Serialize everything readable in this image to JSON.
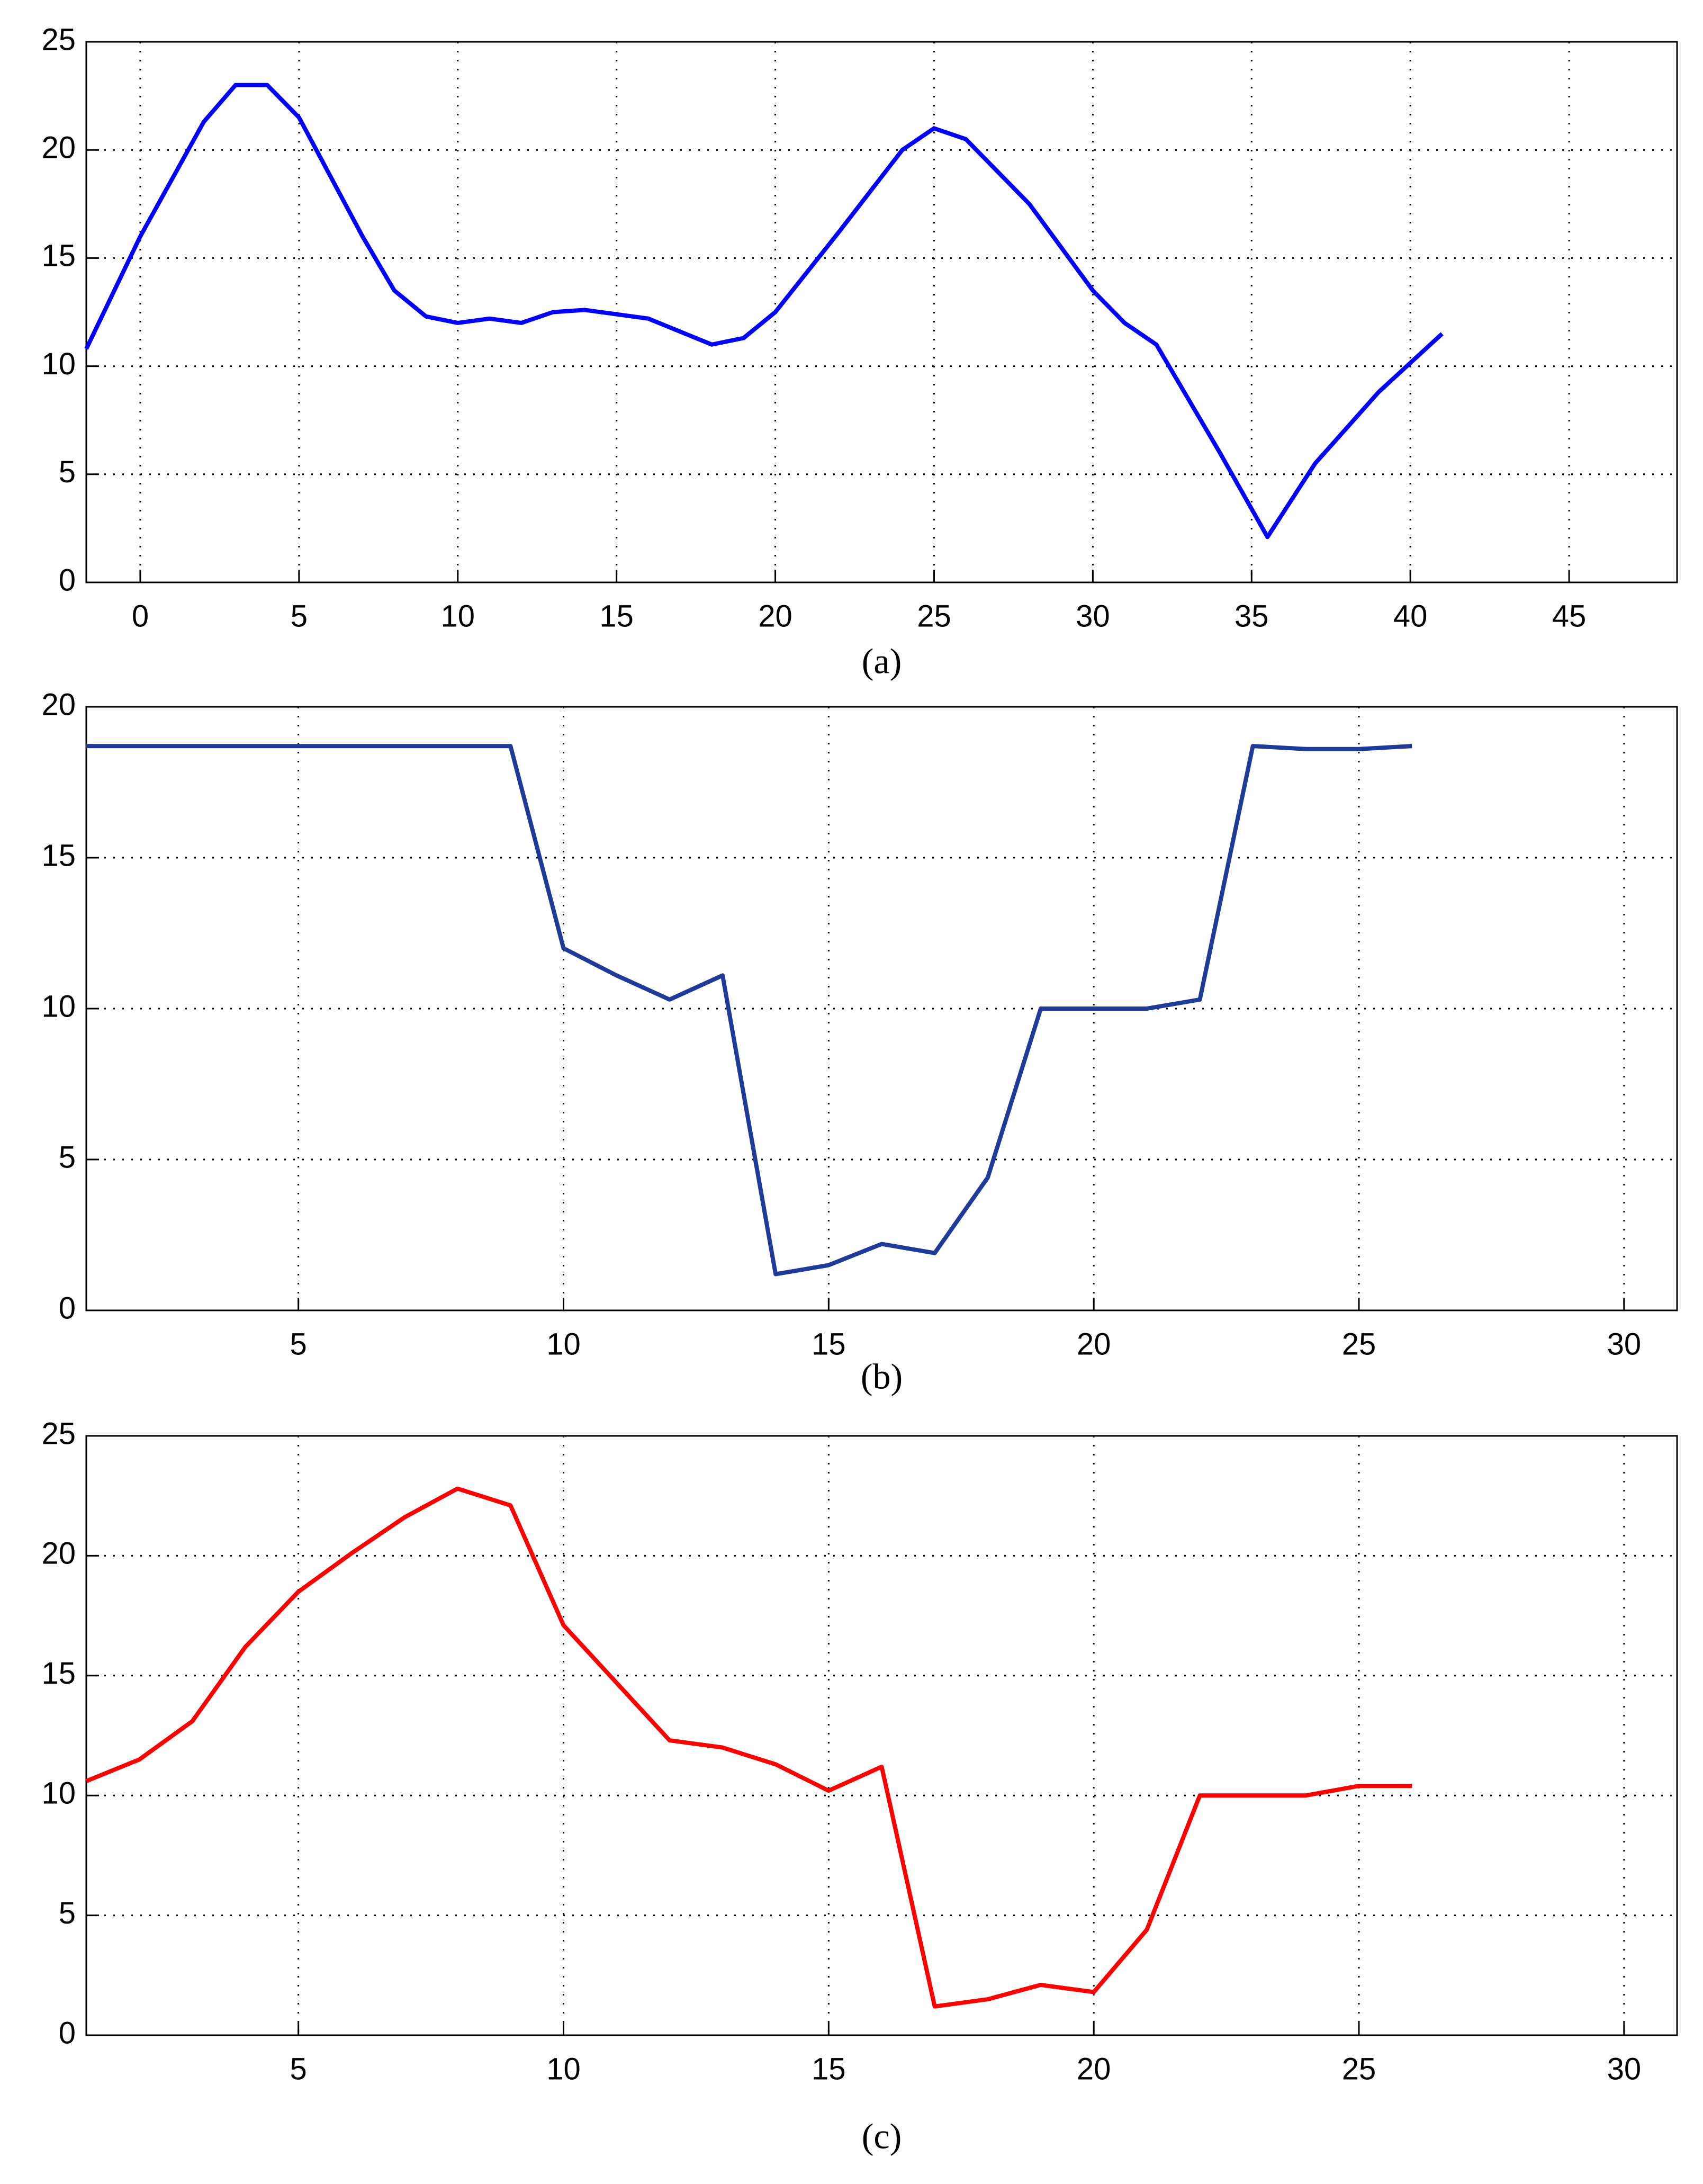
{
  "chart_data": [
    {
      "type": "line",
      "caption": "(a)",
      "xlim": [
        -1.7,
        48.4
      ],
      "ylim": [
        0,
        25
      ],
      "xticks": [
        0,
        5,
        10,
        15,
        20,
        25,
        30,
        35,
        40,
        45
      ],
      "yticks": [
        0,
        5,
        10,
        15,
        20,
        25
      ],
      "grid": true,
      "x": [
        -1.7,
        0,
        2,
        3,
        4,
        5,
        7,
        8,
        9,
        10,
        11,
        12,
        13,
        14,
        16,
        18,
        19,
        20,
        22,
        24,
        25,
        26,
        28,
        30,
        31,
        32,
        34,
        35.5,
        37,
        39,
        41
      ],
      "series": [
        {
          "color": "#0000ff",
          "values": [
            10.8,
            16,
            21.3,
            23,
            23,
            21.5,
            16,
            13.5,
            12.3,
            12,
            12.2,
            12,
            12.5,
            12.6,
            12.2,
            11,
            11.3,
            12.5,
            16.2,
            20,
            21,
            20.5,
            17.5,
            13.5,
            12,
            11,
            6,
            2.1,
            5.5,
            8.8,
            11.5
          ]
        }
      ]
    },
    {
      "type": "line",
      "caption": "(b)",
      "xlim": [
        1,
        31
      ],
      "ylim": [
        0,
        20
      ],
      "xticks": [
        5,
        10,
        15,
        20,
        25,
        30
      ],
      "yticks": [
        0,
        5,
        10,
        15,
        20
      ],
      "grid": true,
      "x": [
        1,
        2,
        3,
        4,
        5,
        6,
        7,
        8,
        9,
        10,
        11,
        12,
        13,
        14,
        15,
        16,
        17,
        18,
        19,
        20,
        21,
        22,
        23,
        24,
        25,
        26
      ],
      "series": [
        {
          "color": "#1f3b9a",
          "values": [
            18.7,
            18.7,
            18.7,
            18.7,
            18.7,
            18.7,
            18.7,
            18.7,
            18.7,
            12,
            11.1,
            10.3,
            11.1,
            1.2,
            1.5,
            2.2,
            1.9,
            4.4,
            10,
            10,
            10,
            10.3,
            18.7,
            18.6,
            18.6,
            18.7
          ]
        }
      ]
    },
    {
      "type": "line",
      "caption": "(c)",
      "xlim": [
        1,
        31
      ],
      "ylim": [
        0,
        25
      ],
      "xticks": [
        5,
        10,
        15,
        20,
        25,
        30
      ],
      "yticks": [
        0,
        5,
        10,
        15,
        20,
        25
      ],
      "grid": true,
      "x": [
        1,
        2,
        3,
        4,
        5,
        6,
        7,
        8,
        9,
        10,
        11,
        12,
        13,
        14,
        15,
        16,
        17,
        18,
        19,
        20,
        21,
        22,
        23,
        24,
        25,
        26
      ],
      "series": [
        {
          "color": "#ff0000",
          "values": [
            10.6,
            11.5,
            13.1,
            16.2,
            18.5,
            20.1,
            21.6,
            22.8,
            22.1,
            17.1,
            14.7,
            12.3,
            12,
            11.3,
            10.2,
            11.2,
            1.2,
            1.5,
            2.1,
            1.8,
            4.4,
            10,
            10,
            10,
            10.4,
            10.4
          ]
        }
      ]
    }
  ]
}
